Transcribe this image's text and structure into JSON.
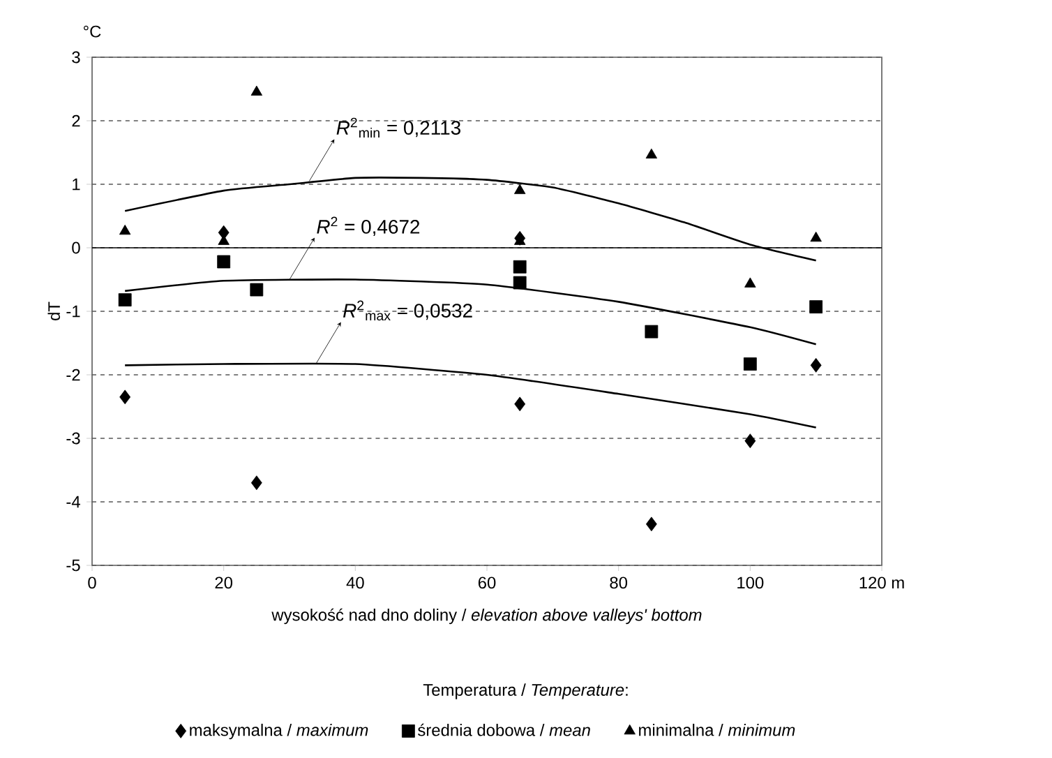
{
  "chart_data": {
    "type": "scatter",
    "xlabel": "wysokość nad dno doliny / *elevation above valleys' bottom*",
    "ylabel": "dT",
    "legend_title": "Temperatura / *Temperature*:",
    "xlim": [
      0,
      120
    ],
    "xticks": [
      0,
      20,
      40,
      60,
      80,
      100,
      {
        "value": 120,
        "label": "120 m"
      }
    ],
    "ylim": [
      -5,
      3
    ],
    "yticks": [
      -5,
      -4,
      -3,
      -2,
      -1,
      0,
      1,
      2,
      3
    ],
    "grid": "y",
    "legend": "bottom",
    "ref_lines": [
      {
        "axis": "y",
        "value": 0,
        "color": "#000000",
        "line_style": "solid"
      }
    ],
    "annotations": [
      "°C",
      {
        "text": "*R*$^{2}$$_{min}$ = 0,2113",
        "x": 33,
        "y": 1.05
      },
      {
        "text": "*R*$^{2}$ = 0,4672",
        "x": 30,
        "y": -0.5
      },
      {
        "text": "*R*$^{2}$$_{max}$ = 0,0532",
        "x": 34,
        "y": -1.83
      }
    ],
    "series": [
      {
        "name": "maksymalna / *maximum*",
        "type": "scatter",
        "marker": "diamond",
        "color": "#000000",
        "x": [
          5,
          20,
          25,
          65,
          65,
          85,
          100,
          110
        ],
        "values": [
          -2.35,
          0.24,
          -3.7,
          -2.46,
          0.15,
          -4.35,
          -3.04,
          -1.85
        ]
      },
      {
        "name": "średnia dobowa / *mean*",
        "type": "scatter",
        "marker": "square",
        "color": "#000000",
        "x": [
          5,
          20,
          25,
          65,
          65,
          85,
          100,
          110
        ],
        "values": [
          -0.82,
          -0.22,
          -0.66,
          -0.3,
          -0.55,
          -1.32,
          -1.83,
          -0.93
        ]
      },
      {
        "name": "minimalna / *minimum*",
        "type": "scatter",
        "marker": "triangle",
        "color": "#000000",
        "x": [
          5,
          20,
          25,
          65,
          65,
          85,
          100,
          110
        ],
        "values": [
          0.26,
          0.1,
          2.45,
          0.9,
          0.1,
          1.46,
          -0.57,
          0.15
        ]
      },
      {
        "type": "line",
        "marker": "none",
        "color": "#000000",
        "x": [
          5,
          20,
          30,
          40,
          50,
          60,
          70,
          80,
          90,
          100,
          110
        ],
        "values": [
          0.58,
          0.9,
          1.0,
          1.1,
          1.1,
          1.07,
          0.95,
          0.7,
          0.4,
          0.05,
          -0.2
        ]
      },
      {
        "type": "line",
        "marker": "none",
        "color": "#000000",
        "x": [
          5,
          20,
          40,
          60,
          80,
          100,
          110
        ],
        "values": [
          -0.68,
          -0.52,
          -0.5,
          -0.58,
          -0.85,
          -1.25,
          -1.52
        ]
      },
      {
        "type": "line",
        "marker": "none",
        "color": "#000000",
        "x": [
          5,
          20,
          40,
          60,
          80,
          100,
          110
        ],
        "values": [
          -1.85,
          -1.83,
          -1.83,
          -2.0,
          -2.3,
          -2.62,
          -2.83
        ]
      }
    ]
  }
}
